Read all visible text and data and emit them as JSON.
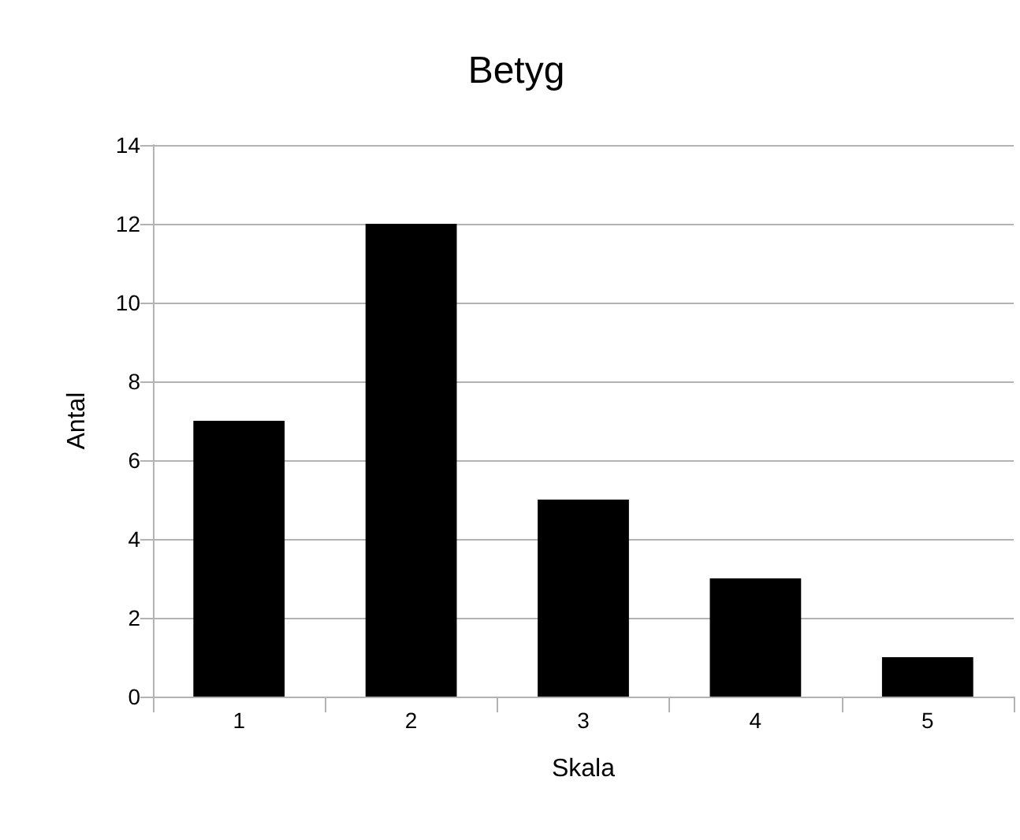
{
  "chart_data": {
    "type": "bar",
    "title": "Betyg",
    "xlabel": "Skala",
    "ylabel": "Antal",
    "categories": [
      "1",
      "2",
      "3",
      "4",
      "5"
    ],
    "values": [
      7,
      12,
      5,
      3,
      1
    ],
    "color": "#000000",
    "ylim": [
      0,
      14
    ],
    "yticks": [
      0,
      2,
      4,
      6,
      8,
      10,
      12,
      14
    ],
    "grid": "y"
  }
}
